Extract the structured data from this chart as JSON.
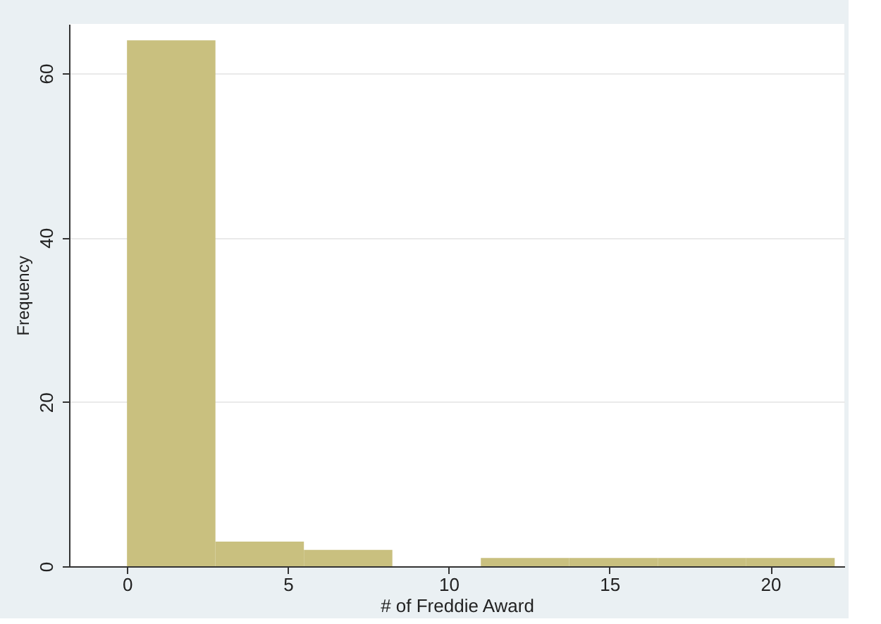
{
  "chart_data": {
    "type": "histogram",
    "xlabel": "# of Freddie Award",
    "ylabel": "Frequency",
    "bins": [
      0,
      2.75,
      5.5,
      8.25,
      11,
      13.75,
      16.5,
      19.25,
      22
    ],
    "values": [
      64,
      3,
      2,
      0,
      1,
      1,
      1,
      1
    ],
    "color": "#c9c07f",
    "xlim": [
      -1.8,
      22.3
    ],
    "xticks": [
      0,
      5,
      10,
      15,
      20
    ],
    "ylim": [
      0,
      66
    ],
    "yticks": [
      0,
      20,
      40,
      60
    ],
    "grid": "y"
  }
}
